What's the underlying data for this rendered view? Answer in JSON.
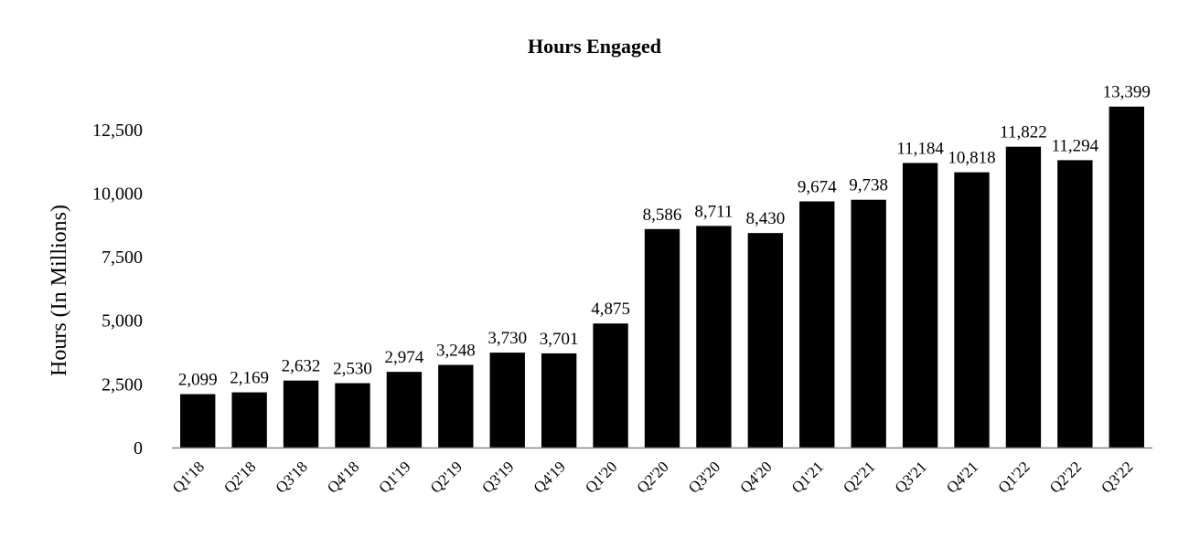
{
  "chart_data": {
    "type": "bar",
    "title": "Hours Engaged",
    "xlabel": "",
    "ylabel": "Hours (In Millions)",
    "ylim": [
      0,
      14000
    ],
    "yticks": [
      "0",
      "2,500",
      "5,000",
      "7,500",
      "10,000",
      "12,500"
    ],
    "ytick_values": [
      0,
      2500,
      5000,
      7500,
      10000,
      12500
    ],
    "grid": false,
    "legend": "none",
    "bar_color": "#000000",
    "categories": [
      "Q1'18",
      "Q2'18",
      "Q3'18",
      "Q4'18",
      "Q1'19",
      "Q2'19",
      "Q3'19",
      "Q4'19",
      "Q1'20",
      "Q2'20",
      "Q3'20",
      "Q4'20",
      "Q1'21",
      "Q2'21",
      "Q3'21",
      "Q4'21",
      "Q1'22",
      "Q2'22",
      "Q3'22"
    ],
    "values": [
      2099,
      2169,
      2632,
      2530,
      2974,
      3248,
      3730,
      3701,
      4875,
      8586,
      8711,
      8430,
      9674,
      9738,
      11184,
      10818,
      11822,
      11294,
      13399
    ],
    "value_labels": [
      "2,099",
      "2,169",
      "2,632",
      "2,530",
      "2,974",
      "3,248",
      "3,730",
      "3,701",
      "4,875",
      "8,586",
      "8,711",
      "8,430",
      "9,674",
      "9,738",
      "11,184",
      "10,818",
      "11,822",
      "11,294",
      "13,399"
    ]
  }
}
